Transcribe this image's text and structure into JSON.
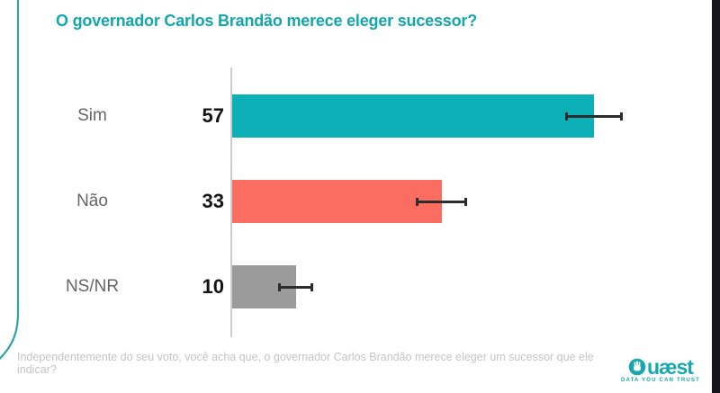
{
  "title": "O governador Carlos Brandão merece eleger sucessor?",
  "footnote": "Independentemente do seu voto, você acha que, o governador Carlos Brandão merece eleger um sucessor que ele indicar?",
  "logo": {
    "brand": "Quæst",
    "brand_suffix": "uæst",
    "tagline": "DATA YOU CAN TRUST",
    "color": "#17a8ae"
  },
  "colors": {
    "title_text": "#12a7ac",
    "axis_line": "#cccccc",
    "whisker": "#2d2d2d",
    "category_text": "#666666",
    "value_text": "#141414",
    "footnote_text": "#c4c4c4",
    "decorative_line": "#2fa3a6",
    "right_edge_bar": "#14141a"
  },
  "chart_data": {
    "type": "bar",
    "orientation": "horizontal",
    "title": "O governador Carlos Brandão merece eleger sucessor?",
    "categories": [
      "Sim",
      "Não",
      "NS/NR"
    ],
    "values": [
      57,
      33,
      10
    ],
    "error_margins": [
      4.5,
      4.0,
      2.8
    ],
    "bar_colors": [
      "#0cb0b6",
      "#fb6d60",
      "#9b9b9b"
    ],
    "value_labels": [
      "57",
      "33",
      "10"
    ],
    "grid": false,
    "legend": false,
    "baseline_axis": true,
    "xlim": [
      0,
      62
    ]
  }
}
